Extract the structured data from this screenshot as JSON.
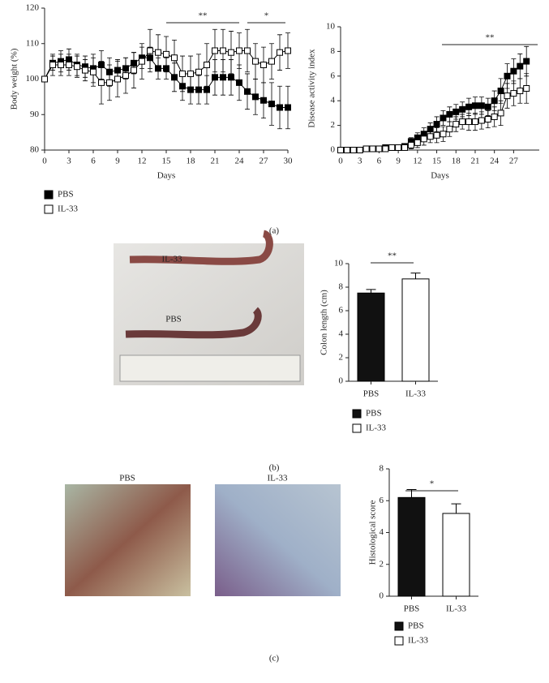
{
  "chart_data": [
    {
      "type": "line",
      "y_label": "Body weight (%)",
      "x_label": "Days",
      "xlim": [
        0,
        30
      ],
      "ylim": [
        80,
        120
      ],
      "xticks": [
        0,
        3,
        6,
        9,
        12,
        15,
        18,
        21,
        24,
        27,
        30
      ],
      "yticks": [
        80,
        90,
        100,
        110,
        120
      ],
      "x": [
        0,
        1,
        2,
        3,
        4,
        5,
        6,
        7,
        8,
        9,
        10,
        11,
        12,
        13,
        14,
        15,
        16,
        17,
        18,
        19,
        20,
        21,
        22,
        23,
        24,
        25,
        26,
        27,
        28,
        29,
        30
      ],
      "series": [
        {
          "name": "PBS",
          "color": "#000000",
          "marker_fill": "#000000",
          "values": [
            100,
            104.5,
            105,
            105.5,
            104,
            103.5,
            103,
            104,
            102,
            102.5,
            103,
            104.5,
            106,
            106,
            103,
            103,
            100.5,
            98,
            97,
            97,
            97,
            100.5,
            100.5,
            100.5,
            99,
            96.5,
            95,
            94,
            93,
            92,
            92
          ],
          "errors": [
            0,
            2,
            3,
            3,
            3,
            3,
            4,
            4,
            4,
            3,
            3,
            3,
            3,
            3,
            3,
            3,
            4,
            4,
            4,
            4,
            4,
            5,
            5,
            5,
            5,
            5,
            5,
            5,
            6,
            6,
            6
          ]
        },
        {
          "name": "IL-33",
          "color": "#000000",
          "marker_fill": "#ffffff",
          "values": [
            100,
            104,
            104,
            104,
            103.5,
            102.5,
            102,
            99,
            99,
            100,
            101,
            102.5,
            105,
            108,
            107.5,
            107,
            106,
            101.5,
            101.5,
            102,
            104,
            108,
            108,
            107.5,
            108,
            108,
            105,
            104,
            105,
            107.5,
            108
          ],
          "errors": [
            0,
            3,
            3,
            3,
            3,
            3,
            4,
            6,
            5,
            5,
            5,
            5,
            5,
            6,
            5,
            5,
            5,
            5,
            5,
            5,
            6,
            6,
            6,
            6,
            5,
            6,
            5,
            5,
            5,
            5,
            5
          ]
        }
      ],
      "annotations": [
        {
          "text": "**"
        },
        {
          "text": "*"
        }
      ],
      "legend": "below"
    },
    {
      "type": "line",
      "y_label": "Disease activity index",
      "x_label": "Days",
      "xlim": [
        0,
        31
      ],
      "ylim": [
        0,
        10
      ],
      "xticks": [
        0,
        3,
        6,
        9,
        12,
        15,
        18,
        21,
        24,
        27
      ],
      "yticks": [
        0,
        2,
        4,
        6,
        8,
        10
      ],
      "x": [
        0,
        1,
        2,
        3,
        4,
        5,
        6,
        7,
        8,
        9,
        10,
        11,
        12,
        13,
        14,
        15,
        16,
        17,
        18,
        19,
        20,
        21,
        22,
        23,
        24,
        25,
        26,
        27,
        28,
        29
      ],
      "series": [
        {
          "name": "PBS",
          "color": "#000000",
          "marker_fill": "#000000",
          "values": [
            0,
            0,
            0,
            0,
            0.1,
            0.1,
            0.1,
            0.2,
            0.2,
            0.2,
            0.3,
            0.7,
            1.0,
            1.3,
            1.7,
            2.1,
            2.6,
            2.9,
            3.1,
            3.3,
            3.5,
            3.6,
            3.6,
            3.5,
            4.0,
            4.8,
            6.0,
            6.4,
            6.8,
            7.2
          ],
          "errors": [
            0,
            0,
            0,
            0,
            0,
            0,
            0,
            0,
            0,
            0,
            0.2,
            0.3,
            0.4,
            0.5,
            0.5,
            0.6,
            0.6,
            0.6,
            0.6,
            0.6,
            0.7,
            0.7,
            0.7,
            0.7,
            0.8,
            1,
            1,
            1,
            1,
            1.2
          ]
        },
        {
          "name": "IL-33",
          "color": "#000000",
          "marker_fill": "#ffffff",
          "values": [
            0,
            0,
            0,
            0,
            0.1,
            0.1,
            0.1,
            0.1,
            0.2,
            0.2,
            0.2,
            0.4,
            0.6,
            0.9,
            1.1,
            1.2,
            1.3,
            1.7,
            2.1,
            2.3,
            2.3,
            2.3,
            2.4,
            2.5,
            2.7,
            3.0,
            4.4,
            4.6,
            4.8,
            5.0
          ],
          "errors": [
            0,
            0,
            0,
            0,
            0,
            0,
            0,
            0,
            0,
            0,
            0.2,
            0.3,
            0.4,
            0.5,
            0.5,
            0.6,
            0.6,
            0.6,
            0.6,
            0.6,
            0.7,
            0.7,
            0.7,
            0.7,
            0.8,
            1,
            1,
            1,
            1,
            1.2
          ]
        }
      ],
      "annotations": [
        {
          "text": "**"
        }
      ],
      "legend": "none"
    },
    {
      "type": "bar",
      "y_label": "Colon length (cm)",
      "ylim": [
        0,
        10
      ],
      "yticks": [
        0,
        2,
        4,
        6,
        8,
        10
      ],
      "categories": [
        "PBS",
        "IL-33"
      ],
      "values": [
        7.5,
        8.7
      ],
      "errors": [
        0.3,
        0.5
      ],
      "colors": [
        "#111111",
        "#ffffff"
      ],
      "annotations": [
        {
          "text": "**"
        }
      ],
      "legend": "below"
    },
    {
      "type": "bar",
      "y_label": "Histological score",
      "ylim": [
        0,
        8
      ],
      "yticks": [
        0,
        2,
        4,
        6,
        8
      ],
      "categories": [
        "PBS",
        "IL-33"
      ],
      "values": [
        6.2,
        5.2
      ],
      "errors": [
        0.5,
        0.6
      ],
      "colors": [
        "#111111",
        "#ffffff"
      ],
      "annotations": [
        {
          "text": "*"
        }
      ],
      "legend": "below"
    }
  ],
  "figure": {
    "panel_labels": [
      "(a)",
      "(b)",
      "(c)"
    ],
    "photo_labels": [
      "IL-33",
      "PBS"
    ],
    "micrograph_titles": [
      "PBS",
      "IL-33"
    ]
  }
}
